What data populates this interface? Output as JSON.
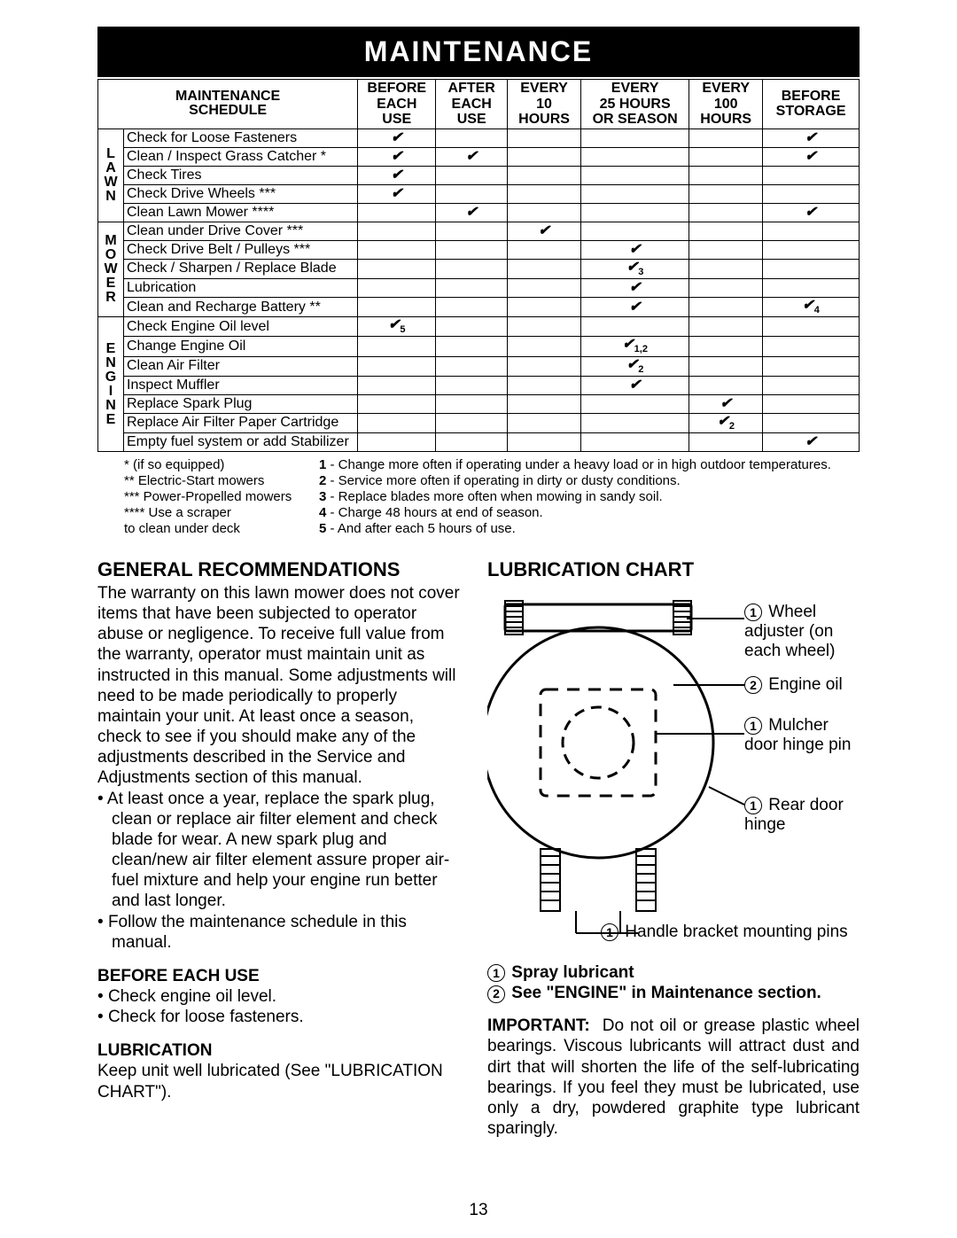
{
  "header": {
    "title": "MAINTENANCE"
  },
  "schedule": {
    "title_l1": "MAINTENANCE",
    "title_l2": "SCHEDULE",
    "columns": [
      "BEFORE\nEACH\nUSE",
      "AFTER\nEACH\nUSE",
      "EVERY\n10\nHOURS",
      "EVERY\n25 HOURS\nOR SEASON",
      "EVERY\n100\nHOURS",
      "BEFORE\nSTORAGE"
    ],
    "groups": [
      {
        "label": "L\nA\nW\nN",
        "rows": [
          {
            "task": "Check for Loose Fasteners",
            "marks": [
              "✔",
              "",
              "",
              "",
              "",
              "✔"
            ]
          },
          {
            "task": "Clean / Inspect Grass Catcher *",
            "marks": [
              "✔",
              "✔",
              "",
              "",
              "",
              "✔"
            ]
          },
          {
            "task": "Check Tires",
            "marks": [
              "✔",
              "",
              "",
              "",
              "",
              ""
            ]
          },
          {
            "task": "Check Drive Wheels ***",
            "marks": [
              "✔",
              "",
              "",
              "",
              "",
              ""
            ]
          },
          {
            "task": "Clean Lawn Mower ****",
            "marks": [
              "",
              "✔",
              "",
              "",
              "",
              "✔"
            ]
          }
        ]
      },
      {
        "label": "M\nO\nW\nE\nR",
        "rows": [
          {
            "task": "Clean under Drive Cover ***",
            "marks": [
              "",
              "",
              "✔",
              "",
              "",
              ""
            ]
          },
          {
            "task": "Check Drive Belt / Pulleys ***",
            "marks": [
              "",
              "",
              "",
              "✔",
              "",
              ""
            ]
          },
          {
            "task": "Check / Sharpen / Replace Blade",
            "marks": [
              "",
              "",
              "",
              "✔₃",
              "",
              ""
            ]
          },
          {
            "task": "Lubrication",
            "marks": [
              "",
              "",
              "",
              "✔",
              "",
              ""
            ]
          },
          {
            "task": "Clean and Recharge Battery **",
            "marks": [
              "",
              "",
              "",
              "✔",
              "",
              "✔₄"
            ]
          }
        ]
      },
      {
        "label": "E\nN\nG\nI\nN\nE",
        "rows": [
          {
            "task": "Check Engine Oil level",
            "marks": [
              "✔₅",
              "",
              "",
              "",
              "",
              ""
            ]
          },
          {
            "task": "Change Engine Oil",
            "marks": [
              "",
              "",
              "",
              "✔₁,₂",
              "",
              ""
            ]
          },
          {
            "task": "Clean Air Filter",
            "marks": [
              "",
              "",
              "",
              "✔₂",
              "",
              ""
            ]
          },
          {
            "task": "Inspect Muffler",
            "marks": [
              "",
              "",
              "",
              "✔",
              "",
              ""
            ]
          },
          {
            "task": "Replace Spark Plug",
            "marks": [
              "",
              "",
              "",
              "",
              "✔",
              ""
            ]
          },
          {
            "task": "Replace Air Filter Paper Cartridge",
            "marks": [
              "",
              "",
              "",
              "",
              "✔₂",
              ""
            ]
          },
          {
            "task": "Empty fuel system or add Stabilizer",
            "marks": [
              "",
              "",
              "",
              "",
              "",
              "✔"
            ]
          }
        ]
      }
    ]
  },
  "footnotes": {
    "left": [
      "* (if so equipped)",
      "** Electric-Start mowers",
      "*** Power-Propelled mowers",
      "**** Use a scraper",
      "        to clean under deck"
    ],
    "right": [
      "1 - Change more often if operating under a heavy load or in high outdoor temperatures.",
      "2 - Service more often if operating in dirty or dusty conditions.",
      "3 - Replace blades more often when mowing in sandy soil.",
      "4 - Charge 48 hours at end of season.",
      "5 - And after each 5 hours of use."
    ]
  },
  "left_column": {
    "h1": "GENERAL RECOMMENDATIONS",
    "p1": "The warranty on this lawn mower does not cover items that have been subjected to operator abuse or negligence. To receive full value from the warranty, operator must maintain unit as instructed in this manual. Some adjustments will need to be made periodically to properly maintain your unit. At least once a season, check to see if you should make any of the adjustments described in the Service and Adjustments section of this manual.",
    "bullets1": [
      "At least once a year, replace the spark plug, clean or replace air filter element and check blade for wear. A new spark plug and clean/new air filter element assure proper air-fuel mixture and help your engine run better and last longer.",
      "Follow the maintenance schedule in this manual."
    ],
    "h2": "BEFORE EACH USE",
    "bullets2": [
      "Check engine oil level.",
      "Check for loose fasteners."
    ],
    "h3": "LUBRICATION",
    "p3": "Keep unit well lubricated (See \"LUBRICATION CHART\")."
  },
  "right_column": {
    "h1": "LUBRICATION CHART",
    "labels": {
      "wheel": "Wheel adjuster (on each wheel)",
      "engine": "Engine oil",
      "mulcher": "Mulcher door hinge pin",
      "rear": "Rear door hinge",
      "handle": "Handle bracket mounting pins"
    },
    "legend1_num": "1",
    "legend1": "Spray lubricant",
    "legend2_num": "2",
    "legend2": "See \"ENGINE\" in Maintenance section.",
    "important_label": "IMPORTANT:",
    "important": "Do not oil or grease plastic wheel bearings. Viscous lubricants will attract dust and dirt that will shorten the life of the self-lubricating bearings. If you feel they must be lubricated, use only a dry, powdered graphite type lubricant sparingly."
  },
  "page_number": "13"
}
